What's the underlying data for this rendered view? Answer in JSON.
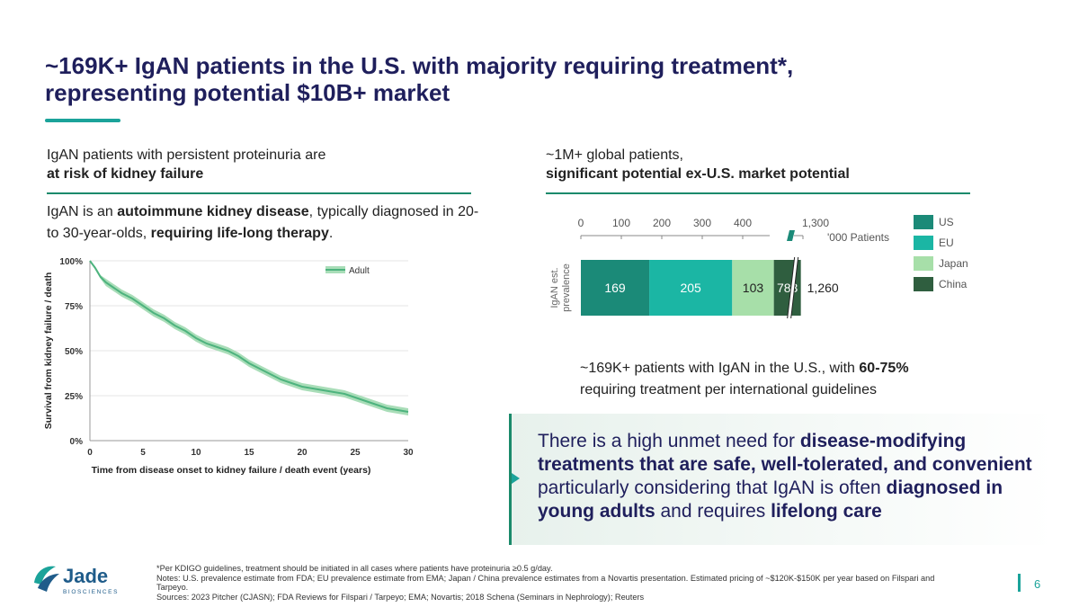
{
  "title": "~169K+ IgAN patients in the U.S. with majority requiring treatment*, representing potential $10B+ market",
  "left": {
    "heading_line1": "IgAN patients with persistent proteinuria are",
    "heading_line2": "at risk of kidney failure",
    "body_part1": "IgAN is an ",
    "body_bold1": "autoimmune kidney disease",
    "body_part2": ", typically diagnosed in 20- to 30-year-olds, ",
    "body_bold2": "requiring life-long therapy",
    "body_part3": "."
  },
  "right": {
    "heading_line1": "~1M+ global patients,",
    "heading_line2": "significant potential ex-U.S. market potential",
    "under_part1": "~169K+ patients with IgAN in the U.S., with ",
    "under_bold": "60-75%",
    "under_part2": " requiring treatment per international guidelines"
  },
  "callout": {
    "part1": "There is a high unmet need for ",
    "bold1": "disease-modifying treatments that are safe, well-tolerated, and convenient",
    "part2": " particularly considering that IgAN is often ",
    "bold2": "diagnosed in young adults",
    "part3": " and requires ",
    "bold3": "lifelong care"
  },
  "chart_data": [
    {
      "type": "line",
      "xlabel": "Time from disease onset to kidney failure / death event (years)",
      "ylabel": "Survival from kidney failure / death",
      "xlim": [
        0,
        30
      ],
      "ylim": [
        0,
        100
      ],
      "x_ticks": [
        "0",
        "5",
        "10",
        "15",
        "20",
        "25",
        "30"
      ],
      "y_ticks": [
        "0%",
        "25%",
        "50%",
        "75%",
        "100%"
      ],
      "legend": "top-right",
      "series": [
        {
          "name": "Adult",
          "color": "#4db37e",
          "band_color": "#a9ddb8",
          "x": [
            0,
            0.5,
            1,
            1.5,
            2,
            3,
            4,
            5,
            6,
            7,
            8,
            9,
            10,
            11,
            12,
            13,
            14,
            15,
            16,
            17,
            18,
            19,
            20,
            21,
            22,
            23,
            24,
            25,
            26,
            27,
            28,
            29,
            30
          ],
          "y": [
            100,
            96,
            91,
            88,
            86,
            82,
            79,
            75,
            71,
            68,
            64,
            61,
            57,
            54,
            52,
            50,
            47,
            43,
            40,
            37,
            34,
            32,
            30,
            29,
            28,
            27,
            26,
            24,
            22,
            20,
            18,
            17,
            16
          ],
          "y_lower": [
            100,
            95,
            90,
            86,
            84,
            80,
            77,
            73,
            69,
            66,
            62,
            59,
            55,
            52,
            50,
            48,
            45,
            41,
            38,
            35,
            32,
            30,
            28,
            27,
            26,
            25,
            24,
            22,
            20,
            18,
            16,
            15,
            14
          ],
          "y_upper": [
            100,
            97,
            92,
            90,
            88,
            84,
            81,
            77,
            73,
            70,
            66,
            63,
            59,
            56,
            54,
            52,
            49,
            45,
            42,
            39,
            36,
            34,
            32,
            31,
            30,
            29,
            28,
            26,
            24,
            22,
            20,
            19,
            18
          ]
        }
      ]
    },
    {
      "type": "bar",
      "orientation": "horizontal",
      "stacked": true,
      "ylabel": "IgAN est. prevalence",
      "unit": "'000 Patients",
      "x_ticks": [
        "0",
        "100",
        "200",
        "300",
        "400",
        "1,300"
      ],
      "axis_break": true,
      "total_label": "1,260",
      "series": [
        {
          "name": "US",
          "value": 169,
          "label": "169",
          "color": "#1b8a78",
          "text_color": "#ffffff"
        },
        {
          "name": "EU",
          "value": 205,
          "label": "205",
          "color": "#1bb6a4",
          "text_color": "#ffffff"
        },
        {
          "name": "Japan",
          "value": 103,
          "label": "103",
          "color": "#a7dfa9",
          "text_color": "#222222"
        },
        {
          "name": "China",
          "value": 783,
          "label": "783",
          "color": "#2f5e3f",
          "text_color": "#ffffff"
        }
      ]
    }
  ],
  "footnote": {
    "line1": "*Per KDIGO guidelines, treatment should be initiated in all cases where patients have proteinuria ≥0.5 g/day.",
    "line2": "Notes: U.S. prevalence estimate from FDA; EU prevalence estimate from EMA; Japan / China prevalence estimates from a Novartis presentation. Estimated pricing of ~$120K-$150K per year based on Filspari and Tarpeyo.",
    "line3": "Sources: 2023 Pitcher (CJASN); FDA Reviews for Filspari / Tarpeyo; EMA; Novartis; 2018 Schena (Seminars in Nephrology); Reuters"
  },
  "logo": {
    "name": "Jade",
    "sub": "BIOSCIENCES",
    "color": "#1f5c8a",
    "accent": "#1ba39a"
  },
  "page_number": "6"
}
